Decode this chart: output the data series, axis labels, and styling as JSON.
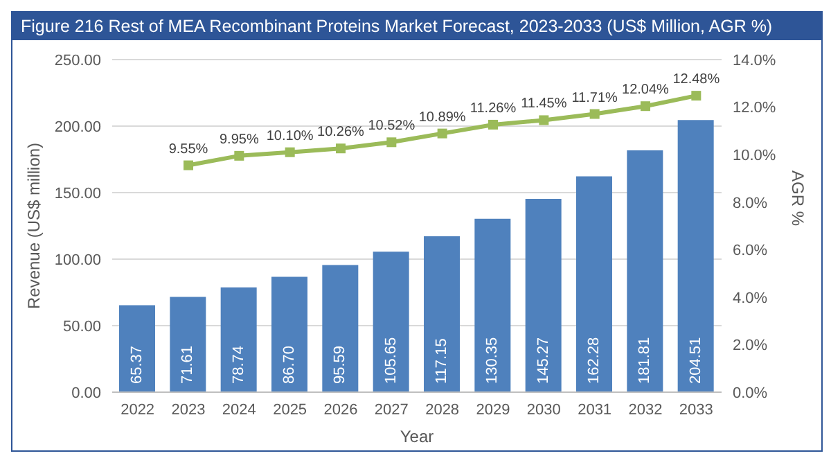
{
  "chart_data": {
    "type": "bar",
    "title": "Figure 216 Rest of MEA Recombinant Proteins Market Forecast, 2023-2033 (US$ Million, AGR %)",
    "xlabel": "Year",
    "ylabel": "Revenue (US$ million)",
    "y2label": "AGR %",
    "categories": [
      "2022",
      "2023",
      "2024",
      "2025",
      "2026",
      "2027",
      "2028",
      "2029",
      "2030",
      "2031",
      "2032",
      "2033"
    ],
    "series": [
      {
        "color": "#4f81bd",
        "values": [
          65.37,
          71.61,
          78.74,
          86.7,
          95.59,
          105.65,
          117.15,
          130.35,
          145.27,
          162.28,
          181.81,
          204.51
        ],
        "value_labels": [
          "65.37",
          "71.61",
          "78.74",
          "86.70",
          "95.59",
          "105.65",
          "117.15",
          "130.35",
          "145.27",
          "162.28",
          "181.81",
          "204.51"
        ]
      },
      {
        "type": "line",
        "axis": "y2",
        "color": "#9bbb59",
        "values": [
          null,
          9.55,
          9.95,
          10.1,
          10.26,
          10.52,
          10.89,
          11.26,
          11.45,
          11.71,
          12.04,
          12.48
        ],
        "value_labels": [
          null,
          "9.55%",
          "9.95%",
          "10.10%",
          "10.26%",
          "10.52%",
          "10.89%",
          "11.26%",
          "11.45%",
          "11.71%",
          "12.04%",
          "12.48%"
        ]
      }
    ],
    "ylim": [
      0,
      250
    ],
    "yticks": [
      {
        "value": 0,
        "label": "0.00"
      },
      {
        "value": 50,
        "label": "50.00"
      },
      {
        "value": 100,
        "label": "100.00"
      },
      {
        "value": 150,
        "label": "150.00"
      },
      {
        "value": 200,
        "label": "200.00"
      },
      {
        "value": 250,
        "label": "250.00"
      }
    ],
    "y2lim": [
      0,
      14
    ],
    "y2ticks": [
      {
        "value": 0,
        "label": "0.0%"
      },
      {
        "value": 2,
        "label": "2.0%"
      },
      {
        "value": 4,
        "label": "4.0%"
      },
      {
        "value": 6,
        "label": "6.0%"
      },
      {
        "value": 8,
        "label": "8.0%"
      },
      {
        "value": 10,
        "label": "10.0%"
      },
      {
        "value": 12,
        "label": "12.0%"
      },
      {
        "value": 14,
        "label": "14.0%"
      }
    ],
    "grid": "y",
    "marker": "square"
  }
}
